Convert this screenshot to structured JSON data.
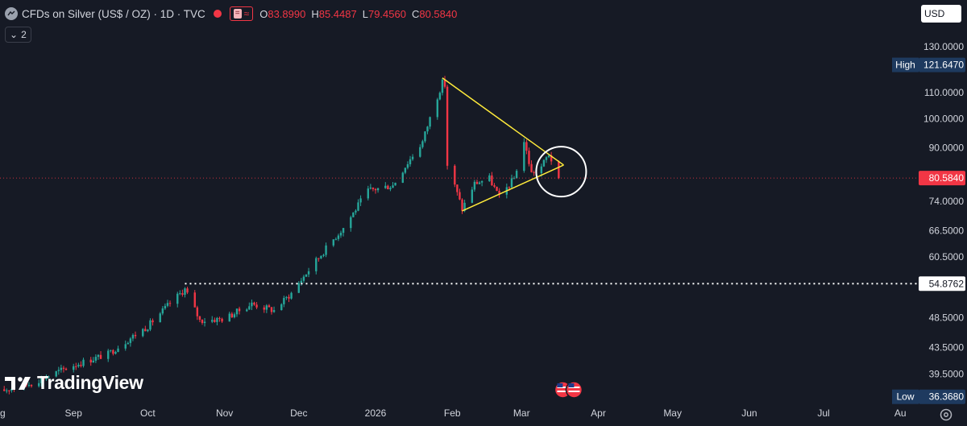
{
  "header": {
    "symbol_title": "CFDs on Silver (US$ / OZ) · 1D · TVC",
    "currency": "USD",
    "collapse_count": "2",
    "ohlc": [
      {
        "key": "O",
        "value": "83.8990"
      },
      {
        "key": "H",
        "value": "85.4487"
      },
      {
        "key": "L",
        "value": "79.4560"
      },
      {
        "key": "C",
        "value": "80.5840"
      }
    ]
  },
  "logo": {
    "text": "TradingView",
    "mark": "TV"
  },
  "colors": {
    "background": "#161a25",
    "up": "#26a69a",
    "down": "#f23645",
    "trendline": "#ffeb3b",
    "badge_blue": "#1e3a5f",
    "badge_red": "#f23645"
  },
  "chart_data": {
    "type": "candlestick",
    "x_labels": [
      "Aug",
      "Sep",
      "Oct",
      "Nov",
      "Dec",
      "2026",
      "Feb",
      "Mar",
      "Apr",
      "May",
      "Jun",
      "Jul",
      "Au"
    ],
    "y_ticks": [
      "130.0000",
      "110.0000",
      "100.0000",
      "90.0000",
      "74.0000",
      "66.5000",
      "60.5000",
      "48.5000",
      "43.5000",
      "39.5000"
    ],
    "y_scale": "log",
    "ylim": [
      35.6,
      137
    ],
    "price_badges": [
      {
        "label": "High",
        "value": "121.6470",
        "style": "blue"
      },
      {
        "label": "",
        "value": "80.5840",
        "style": "red"
      },
      {
        "label": "",
        "value": "54.8762",
        "style": "white"
      },
      {
        "label": "Low",
        "value": "36.3680",
        "style": "blue"
      }
    ],
    "close_path": [
      [
        "2025-08-01",
        37.0
      ],
      [
        "2025-08-15",
        38.2
      ],
      [
        "2025-09-01",
        40.8
      ],
      [
        "2025-09-15",
        42.5
      ],
      [
        "2025-10-01",
        47.0
      ],
      [
        "2025-10-16",
        53.8
      ],
      [
        "2025-10-22",
        48.0
      ],
      [
        "2025-11-01",
        48.3
      ],
      [
        "2025-11-12",
        51.0
      ],
      [
        "2025-11-21",
        49.8
      ],
      [
        "2025-11-28",
        53.0
      ],
      [
        "2025-12-10",
        61.0
      ],
      [
        "2025-12-20",
        68.0
      ],
      [
        "2025-12-29",
        77.0
      ],
      [
        "2026-01-08",
        78.5
      ],
      [
        "2026-01-20",
        92.0
      ],
      [
        "2026-01-28",
        114.0
      ],
      [
        "2026-01-29",
        113.0
      ],
      [
        "2026-01-30",
        84.5
      ],
      [
        "2026-02-05",
        72.0
      ],
      [
        "2026-02-10",
        79.0
      ],
      [
        "2026-02-16",
        80.5
      ],
      [
        "2026-02-20",
        75.0
      ],
      [
        "2026-02-26",
        80.5
      ],
      [
        "2026-03-02",
        92.0
      ],
      [
        "2026-03-05",
        82.0
      ],
      [
        "2026-03-09",
        84.0
      ],
      [
        "2026-03-12",
        88.0
      ],
      [
        "2026-03-16",
        80.58
      ]
    ],
    "reference_line": {
      "value": 54.8762,
      "from": "2025-10-16"
    },
    "triangle": {
      "upper": [
        [
          "2026-01-28",
          116.0
        ],
        [
          "2026-03-18",
          84.5
        ]
      ],
      "lower": [
        [
          "2026-02-05",
          71.5
        ],
        [
          "2026-03-18",
          84.5
        ]
      ]
    },
    "circle_center": [
      "2026-03-17",
      82.5
    ],
    "current_price": 80.584
  }
}
